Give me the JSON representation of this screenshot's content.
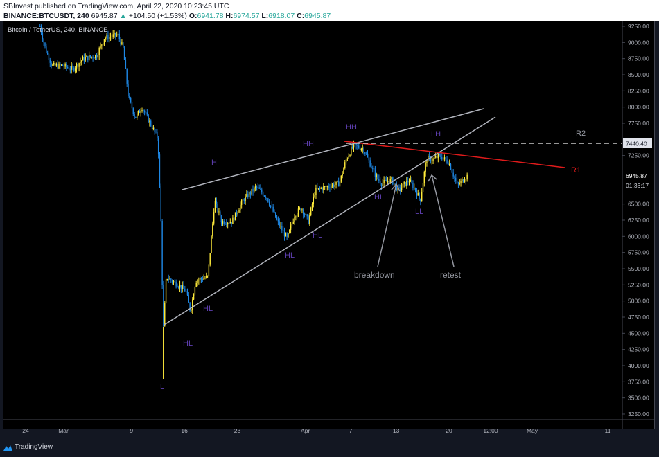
{
  "header": {
    "published": "SBInvest published on TradingView.com, April 22, 2020 10:23:45 UTC",
    "symbol": "BINANCE:BTCUSDT, 240",
    "last": "6945.87",
    "change": "+104.50 (+1.53%)",
    "o_label": "O:",
    "o": "6941.78",
    "h_label": "H:",
    "h": "6974.57",
    "l_label": "L:",
    "l": "6918.07",
    "c_label": "C:",
    "c": "6945.87"
  },
  "chart_title": "Bitcoin / TetherUS, 240, BINANCE",
  "colors": {
    "up": "#ffeb3b",
    "down": "#1e88e5",
    "label": "#5e3fb0",
    "resistance": "#e01b1b",
    "trendline": "#b2b5be"
  },
  "price_axis": {
    "ticks": [
      "9250.00",
      "9000.00",
      "8750.00",
      "8500.00",
      "8250.00",
      "8000.00",
      "7750.00",
      "7250.00",
      "6500.00",
      "6250.00",
      "6000.00",
      "5750.00",
      "5500.00",
      "5250.00",
      "5000.00",
      "4750.00",
      "4500.00",
      "4250.00",
      "4000.00",
      "3750.00",
      "3500.00",
      "3250.00"
    ],
    "level_label": "7440.40",
    "current_label": "6945.87",
    "countdown": "01:36:17"
  },
  "time_axis": [
    "24",
    "Mar",
    "9",
    "16",
    "23",
    "Apr",
    "7",
    "13",
    "20",
    "12:00",
    "May",
    "11"
  ],
  "annotations": {
    "H": "H",
    "HH1": "HH",
    "HH2": "HH",
    "LH": "LH",
    "R2": "R2",
    "R1": "R1",
    "HL1": "HL",
    "HL2": "HL",
    "L": "L",
    "HL3": "HL",
    "HL4": "HL",
    "HL5": "HL",
    "LL": "LL",
    "breakdown": "breakdown",
    "retest": "retest"
  },
  "price_path": [
    [
      1.9,
      9250
    ],
    [
      2.6,
      8907
    ],
    [
      3.5,
      8639
    ],
    [
      4.9,
      8639
    ],
    [
      6.2,
      8586
    ],
    [
      7.6,
      8746
    ],
    [
      9.4,
      8800
    ],
    [
      10.4,
      9068
    ],
    [
      12.2,
      9121
    ],
    [
      12.9,
      8907
    ],
    [
      13.6,
      8157
    ],
    [
      14.5,
      7836
    ],
    [
      15.4,
      7996
    ],
    [
      16.8,
      7675
    ],
    [
      17.5,
      7514
    ],
    [
      17.9,
      6229
    ],
    [
      18.2,
      4514
    ],
    [
      18.6,
      5371
    ],
    [
      20.0,
      5264
    ],
    [
      21.2,
      5157
    ],
    [
      21.8,
      4836
    ],
    [
      22.5,
      5318
    ],
    [
      24.1,
      5371
    ],
    [
      25.0,
      6550
    ],
    [
      25.9,
      6229
    ],
    [
      27.3,
      6229
    ],
    [
      28.7,
      6550
    ],
    [
      30.5,
      6764
    ],
    [
      31.9,
      6604
    ],
    [
      33.3,
      6229
    ],
    [
      34.6,
      5961
    ],
    [
      35.6,
      6336
    ],
    [
      36.5,
      6443
    ],
    [
      37.4,
      6229
    ],
    [
      38.3,
      6711
    ],
    [
      39.7,
      6764
    ],
    [
      41.5,
      6818
    ],
    [
      42.4,
      7193
    ],
    [
      43.4,
      7407
    ],
    [
      44.7,
      7354
    ],
    [
      46.1,
      6979
    ],
    [
      47.0,
      6818
    ],
    [
      48.4,
      6871
    ],
    [
      49.3,
      6711
    ],
    [
      50.7,
      6871
    ],
    [
      51.6,
      6711
    ],
    [
      52.2,
      6550
    ],
    [
      53.0,
      7193
    ],
    [
      53.9,
      7193
    ],
    [
      54.8,
      7246
    ],
    [
      56.0,
      7139
    ],
    [
      57.1,
      6786
    ],
    [
      58.5,
      6946
    ]
  ],
  "footer": {
    "brand": "TradingView"
  }
}
